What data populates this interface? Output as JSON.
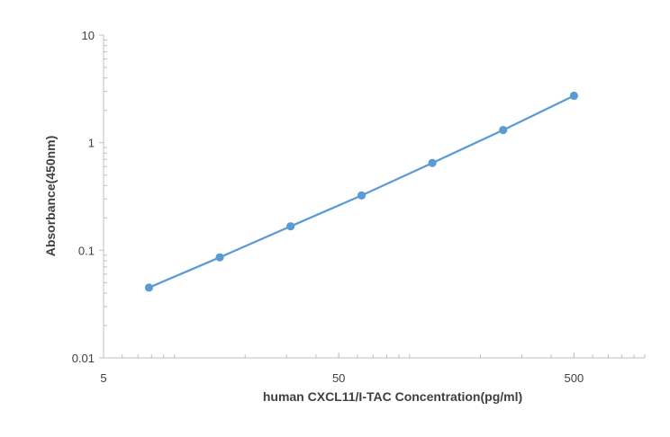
{
  "chart_data": {
    "type": "line",
    "title": "",
    "xlabel": "human CXCL11/I-TAC Concentration(pg/ml)",
    "ylabel": "Absorbance(450nm)",
    "x_scale": "log",
    "y_scale": "log",
    "xlim": [
      5,
      1000
    ],
    "ylim": [
      0.01,
      10
    ],
    "x_tick_labels": [
      "5",
      "50",
      "500"
    ],
    "x_tick_values": [
      5,
      50,
      500
    ],
    "y_tick_labels": [
      "0.01",
      "0.1",
      "1",
      "10"
    ],
    "y_tick_values": [
      0.01,
      0.1,
      1,
      10
    ],
    "grid": false,
    "legend": "none",
    "series_color": "#5B9BD5",
    "axis_color": "#BFBFBF",
    "series": [
      {
        "x": [
          7.8,
          15.6,
          31.2,
          62.5,
          125,
          250,
          500
        ],
        "y": [
          0.045,
          0.086,
          0.167,
          0.323,
          0.648,
          1.31,
          2.73
        ]
      }
    ]
  }
}
